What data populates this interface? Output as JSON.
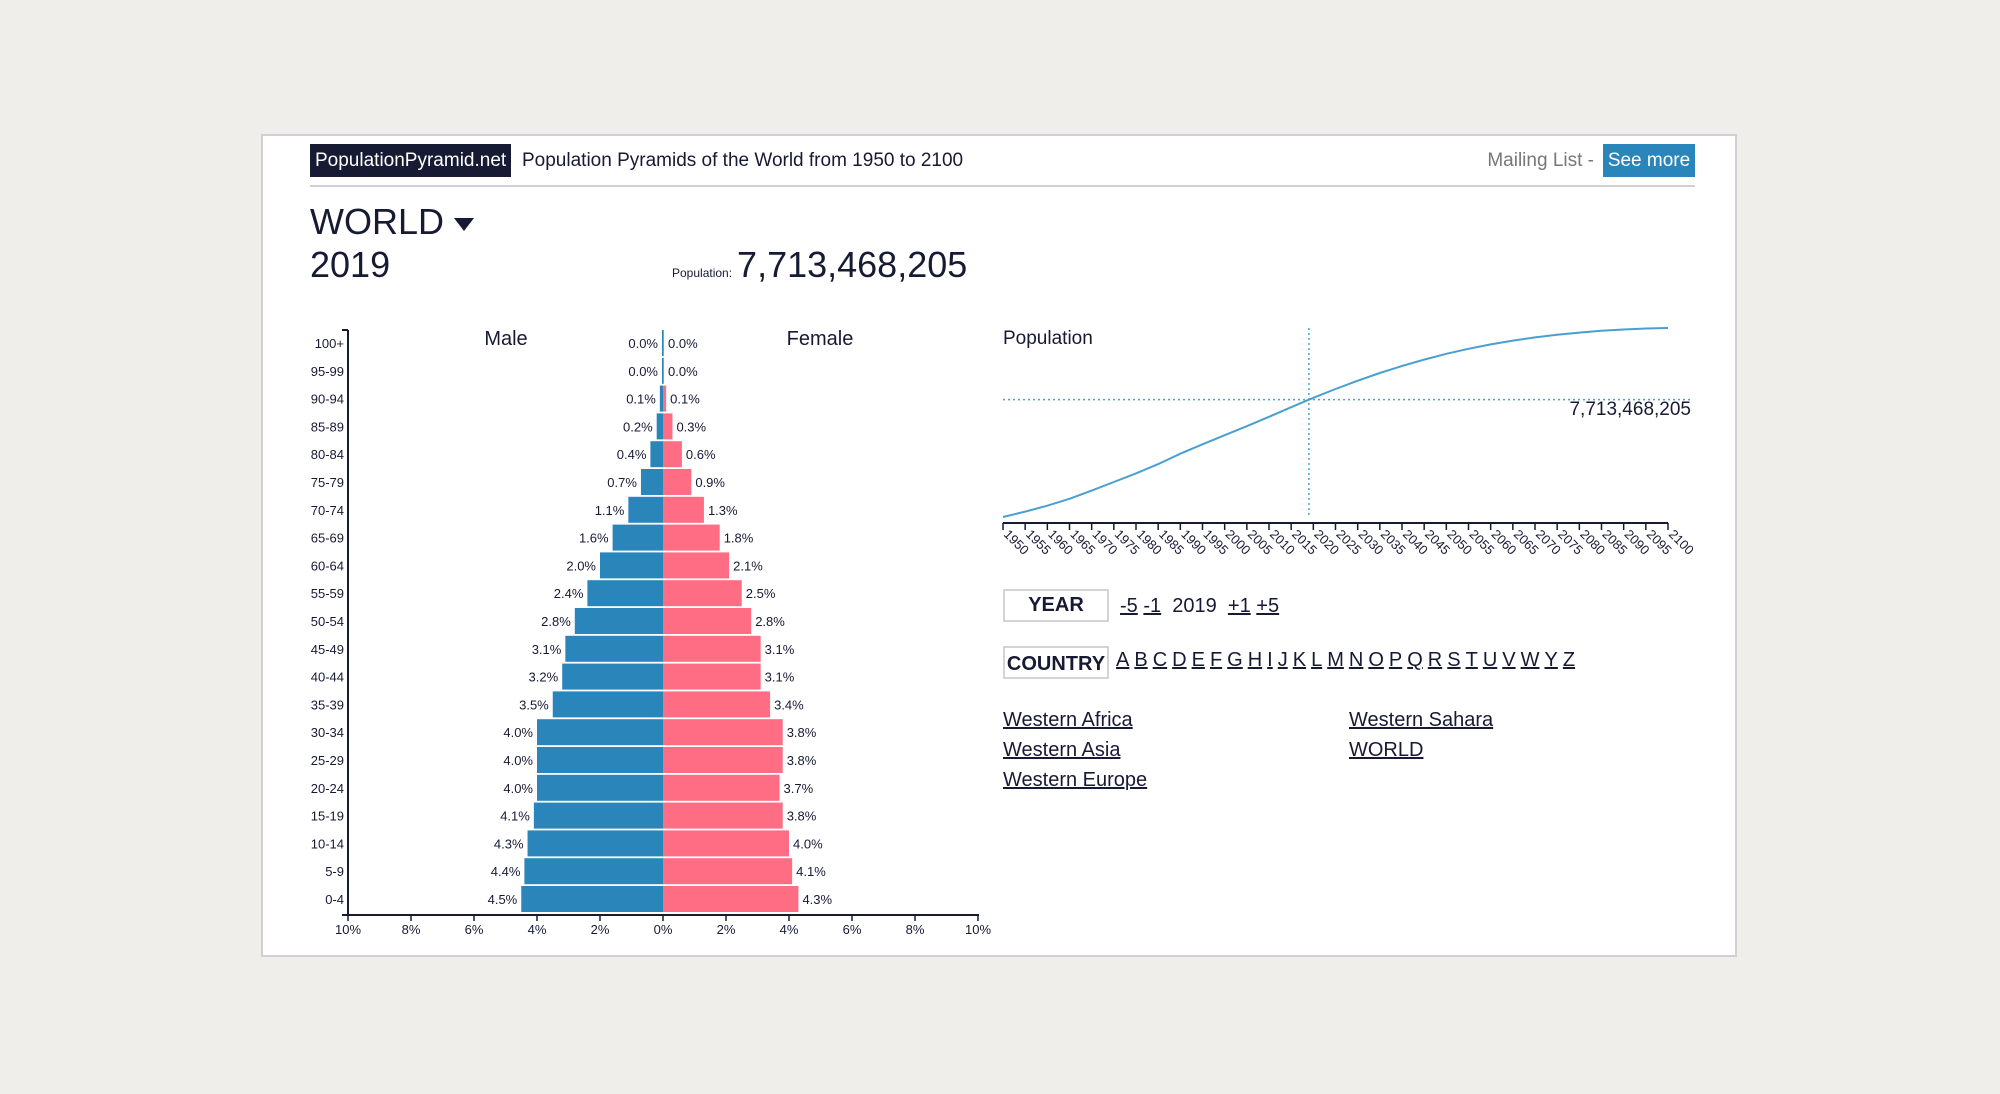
{
  "header": {
    "logo": "PopulationPyramid.net",
    "tagline": "Population Pyramids of the World from 1950 to 2100",
    "mailing_list": "Mailing List -",
    "see_more": "See more"
  },
  "location": {
    "name": "WORLD",
    "year": "2019",
    "population_label": "Population:",
    "population": "7,713,468,205"
  },
  "colors": {
    "male": "#2a86ba",
    "female": "#fe6d84",
    "line": "#4a9fd1",
    "ink": "#161a33"
  },
  "chart_data": [
    {
      "type": "bar",
      "title": "",
      "male_label": "Male",
      "female_label": "Female",
      "categories": [
        "100+",
        "95-99",
        "90-94",
        "85-89",
        "80-84",
        "75-79",
        "70-74",
        "65-69",
        "60-64",
        "55-59",
        "50-54",
        "45-49",
        "40-44",
        "35-39",
        "30-34",
        "25-29",
        "20-24",
        "15-19",
        "10-14",
        "5-9",
        "0-4"
      ],
      "series": [
        {
          "name": "Male",
          "values": [
            0.0,
            0.0,
            0.1,
            0.2,
            0.4,
            0.7,
            1.1,
            1.6,
            2.0,
            2.4,
            2.8,
            3.1,
            3.2,
            3.5,
            4.0,
            4.0,
            4.0,
            4.1,
            4.3,
            4.4,
            4.5
          ]
        },
        {
          "name": "Female",
          "values": [
            0.0,
            0.0,
            0.1,
            0.3,
            0.6,
            0.9,
            1.3,
            1.8,
            2.1,
            2.5,
            2.8,
            3.1,
            3.1,
            3.4,
            3.8,
            3.8,
            3.7,
            3.8,
            4.0,
            4.1,
            4.3
          ]
        }
      ],
      "labels_male": [
        "0.0%",
        "0.0%",
        "0.1%",
        "0.2%",
        "0.4%",
        "0.7%",
        "1.1%",
        "1.6%",
        "2.0%",
        "2.4%",
        "2.8%",
        "3.1%",
        "3.2%",
        "3.5%",
        "4.0%",
        "4.0%",
        "4.0%",
        "4.1%",
        "4.3%",
        "4.4%",
        "4.5%"
      ],
      "labels_female": [
        "0.0%",
        "0.0%",
        "0.1%",
        "0.3%",
        "0.6%",
        "0.9%",
        "1.3%",
        "1.8%",
        "2.1%",
        "2.5%",
        "2.8%",
        "3.1%",
        "3.1%",
        "3.4%",
        "3.8%",
        "3.8%",
        "3.7%",
        "3.8%",
        "4.0%",
        "4.1%",
        "4.3%"
      ],
      "xlim": [
        -10,
        10
      ],
      "xticks": [
        "10%",
        "8%",
        "6%",
        "4%",
        "2%",
        "0%",
        "2%",
        "4%",
        "6%",
        "8%",
        "10%"
      ]
    },
    {
      "type": "line",
      "title": "Population",
      "x": [
        1950,
        1955,
        1960,
        1965,
        1970,
        1975,
        1980,
        1985,
        1990,
        1995,
        2000,
        2005,
        2010,
        2015,
        2020,
        2025,
        2030,
        2035,
        2040,
        2045,
        2050,
        2055,
        2060,
        2065,
        2070,
        2075,
        2080,
        2085,
        2090,
        2095,
        2100
      ],
      "y": [
        2.536,
        2.773,
        3.035,
        3.34,
        3.7,
        4.079,
        4.458,
        4.871,
        5.327,
        5.744,
        6.143,
        6.542,
        6.957,
        7.38,
        7.795,
        8.184,
        8.548,
        8.888,
        9.199,
        9.482,
        9.735,
        9.958,
        10.152,
        10.318,
        10.459,
        10.577,
        10.674,
        10.75,
        10.81,
        10.852,
        10.875
      ],
      "y_units": "billions",
      "ylim": [
        2.536,
        10.875
      ],
      "xlim": [
        1950,
        2100
      ],
      "highlight": {
        "x": 2019,
        "y": 7.713468205,
        "label": "7,713,468,205"
      },
      "xticks": [
        "1950",
        "1955",
        "1960",
        "1965",
        "1970",
        "1975",
        "1980",
        "1985",
        "1990",
        "1995",
        "2000",
        "2005",
        "2010",
        "2015",
        "2020",
        "2025",
        "2030",
        "2035",
        "2040",
        "2045",
        "2050",
        "2055",
        "2060",
        "2065",
        "2070",
        "2075",
        "2080",
        "2085",
        "2090",
        "2095",
        "2100"
      ]
    }
  ],
  "controls": {
    "year_label": "YEAR",
    "minus5": "-5",
    "minus1": "-1",
    "year": "2019",
    "plus1": "+1",
    "plus5": "+5",
    "country_label": "COUNTRY",
    "letters": [
      "A",
      "B",
      "C",
      "D",
      "E",
      "F",
      "G",
      "H",
      "I",
      "J",
      "K",
      "L",
      "M",
      "N",
      "O",
      "P",
      "Q",
      "R",
      "S",
      "T",
      "U",
      "V",
      "W",
      "Y",
      "Z"
    ]
  },
  "regions": {
    "col1": [
      "Western Africa",
      "Western Asia",
      "Western Europe"
    ],
    "col2": [
      "Western Sahara",
      "WORLD"
    ]
  }
}
